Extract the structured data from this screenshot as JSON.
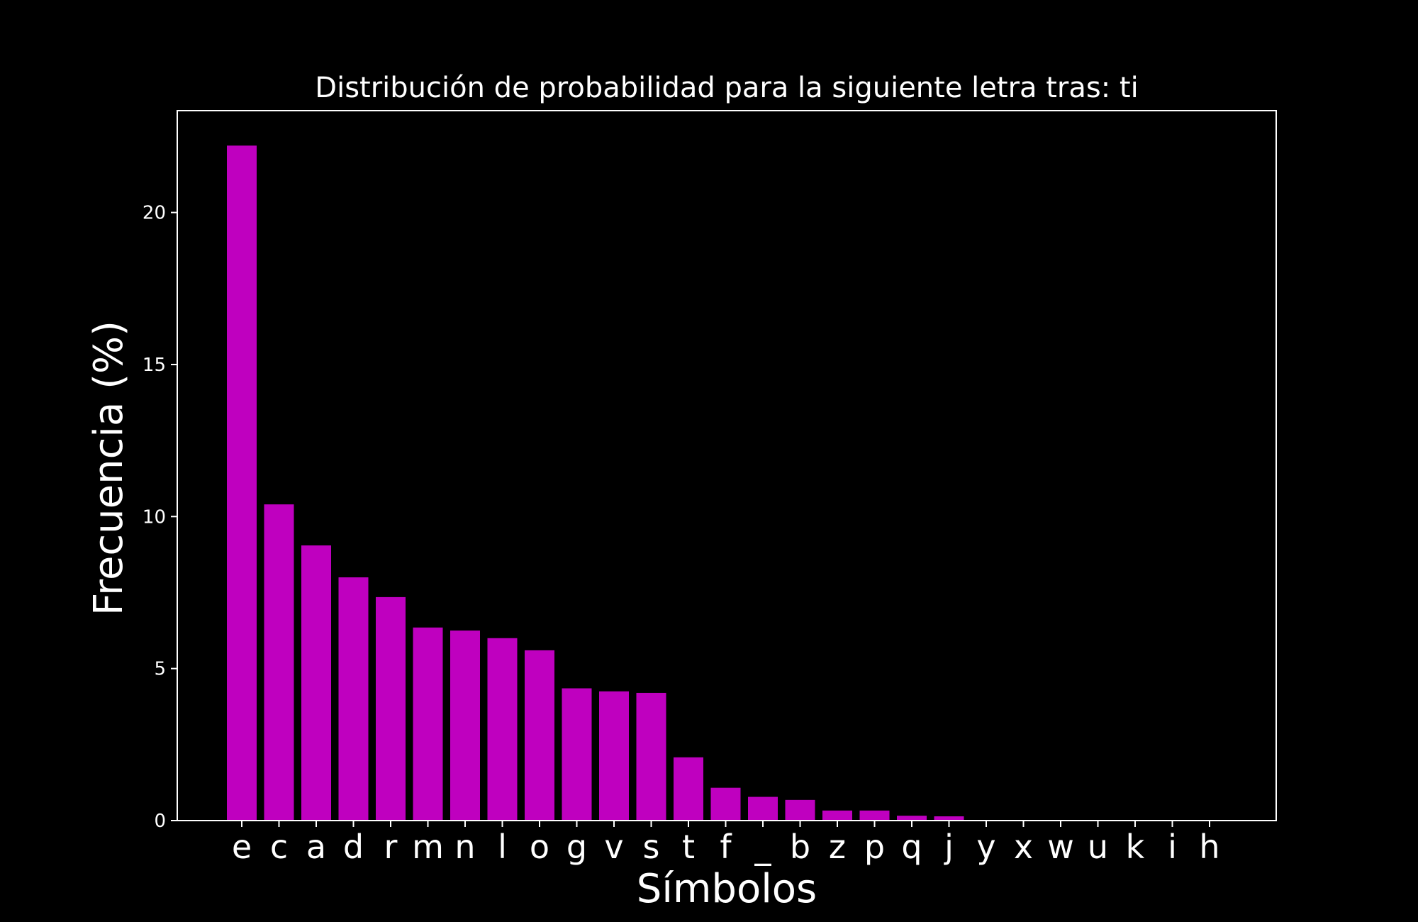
{
  "chart_data": {
    "type": "bar",
    "title": "Distribución de probabilidad para la siguiente letra tras: ti",
    "xlabel": "Símbolos",
    "ylabel": "Frecuencia (%)",
    "categories": [
      "e",
      "c",
      "a",
      "d",
      "r",
      "m",
      "n",
      "l",
      "o",
      "g",
      "v",
      "s",
      "t",
      "f",
      "_",
      "b",
      "z",
      "p",
      "q",
      "j",
      "y",
      "x",
      "w",
      "u",
      "k",
      "i",
      "h"
    ],
    "values": [
      22.2,
      10.4,
      9.05,
      8.0,
      7.35,
      6.35,
      6.25,
      6.0,
      5.6,
      4.35,
      4.25,
      4.2,
      2.08,
      1.08,
      0.78,
      0.68,
      0.33,
      0.33,
      0.16,
      0.14,
      0,
      0,
      0,
      0,
      0,
      0,
      0
    ],
    "ylim": [
      0,
      23.35
    ],
    "yticks": [
      0,
      5,
      10,
      15,
      20
    ],
    "grid": false,
    "colors": {
      "bar": "#bf00bf",
      "background": "#000000",
      "foreground": "#ffffff"
    }
  }
}
